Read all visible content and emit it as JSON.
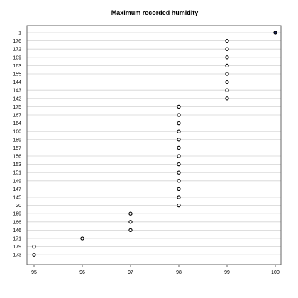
{
  "chart_data": {
    "type": "dotplot",
    "title": "Maximum recorded humidity",
    "xlabel": "",
    "ylabel": "",
    "xlim": [
      95,
      100
    ],
    "xticks": [
      95,
      96,
      97,
      98,
      99,
      100
    ],
    "grid": true,
    "colors": {
      "dot_fill": "#ffffff",
      "highlight_fill": "#1a2a6c",
      "grid": "#d4d4d4"
    },
    "categories": [
      "1",
      "176",
      "172",
      "169",
      "163",
      "155",
      "144",
      "143",
      "142",
      "175",
      "167",
      "164",
      "160",
      "159",
      "157",
      "156",
      "153",
      "151",
      "149",
      "147",
      "145",
      "20",
      "169",
      "166",
      "146",
      "171",
      "179",
      "173"
    ],
    "values": [
      100,
      99,
      99,
      99,
      99,
      99,
      99,
      99,
      99,
      98,
      98,
      98,
      98,
      98,
      98,
      98,
      98,
      98,
      98,
      98,
      98,
      98,
      97,
      97,
      97,
      96,
      95,
      95
    ],
    "highlight": [
      true,
      false,
      false,
      false,
      false,
      false,
      false,
      false,
      false,
      false,
      false,
      false,
      false,
      false,
      false,
      false,
      false,
      false,
      false,
      false,
      false,
      false,
      false,
      false,
      false,
      false,
      false,
      false
    ]
  }
}
